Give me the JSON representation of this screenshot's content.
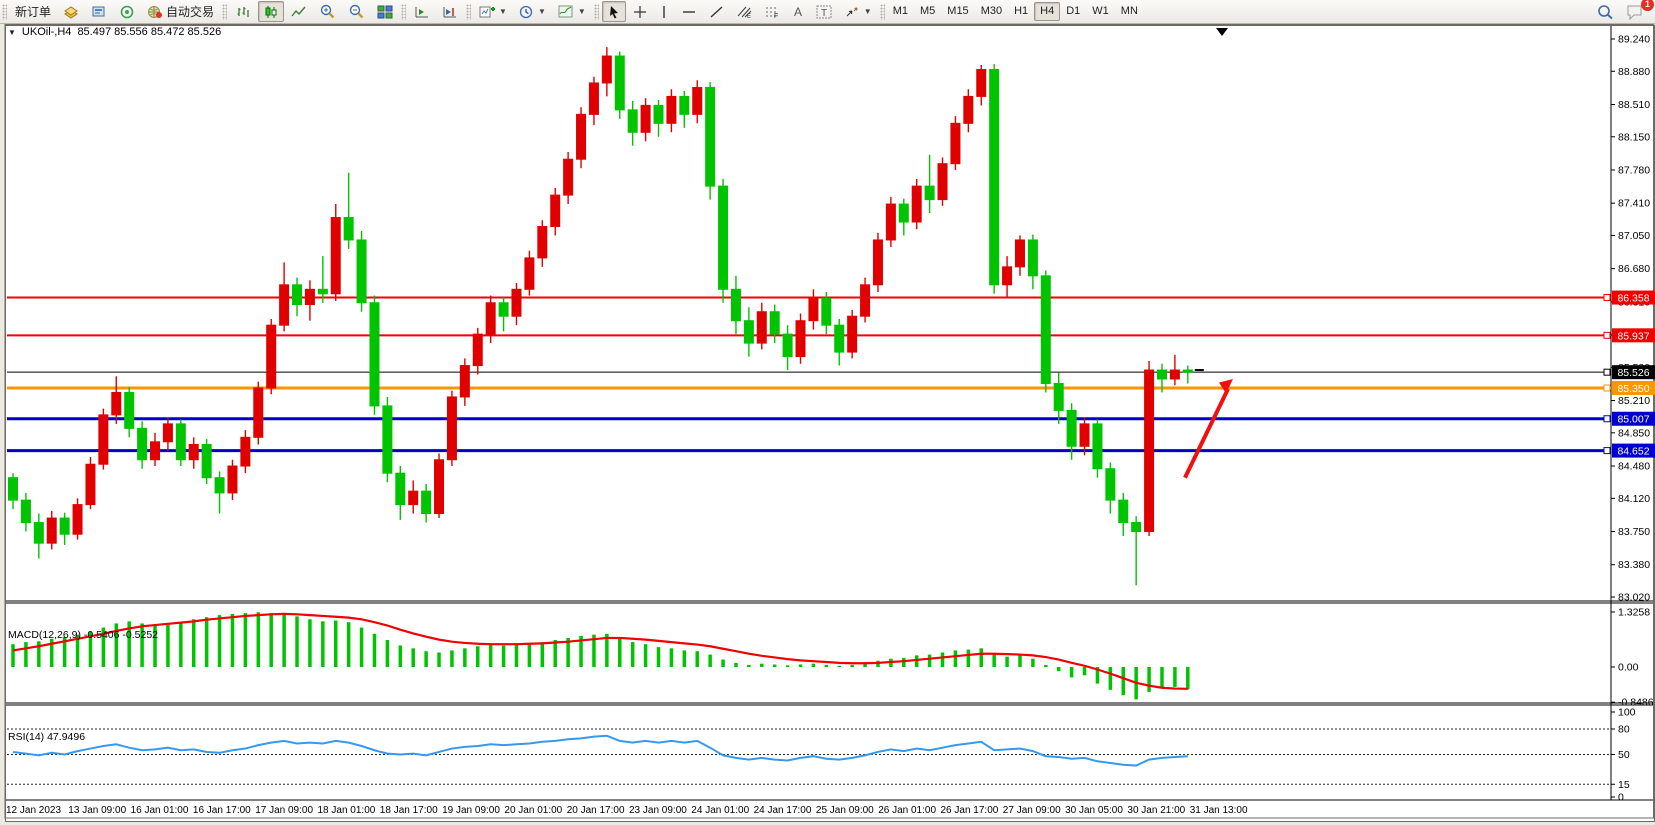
{
  "toolbar": {
    "new_order_label": "新订单",
    "auto_trading_label": "自动交易",
    "timeframes": [
      "M1",
      "M5",
      "M15",
      "M30",
      "H1",
      "H4",
      "D1",
      "W1",
      "MN"
    ],
    "active_timeframe": "H4",
    "notification_count": "1"
  },
  "chart": {
    "title": "UKOil-,H4",
    "ohlc": "85.497 85.556 85.472 85.526"
  },
  "chart_data": {
    "type": "candlestick",
    "symbol": "UKOil-",
    "timeframe": "H4",
    "ohlc_display": {
      "open": "85.497",
      "high": "85.556",
      "low": "85.472",
      "close": "85.526"
    },
    "price_axis": {
      "max": 89.24,
      "min": 83.02,
      "ticks": [
        89.24,
        88.88,
        88.51,
        88.15,
        87.78,
        87.41,
        87.05,
        86.68,
        86.31,
        85.94,
        85.58,
        85.21,
        84.85,
        84.48,
        84.12,
        83.75,
        83.38,
        83.02
      ]
    },
    "hlines": [
      {
        "price": 86.358,
        "label": "86.358",
        "color": "#f00000",
        "width": 2
      },
      {
        "price": 85.937,
        "label": "85.937",
        "color": "#f00000",
        "width": 2
      },
      {
        "price": 85.526,
        "label": "85.526",
        "color": "#000000",
        "width": 1
      },
      {
        "price": 85.35,
        "label": "85.350",
        "color": "#ff9500",
        "width": 3
      },
      {
        "price": 85.007,
        "label": "85.007",
        "color": "#0000cc",
        "width": 3
      },
      {
        "price": 84.652,
        "label": "84.652",
        "color": "#0000cc",
        "width": 3
      }
    ],
    "candles": [
      [
        84.35,
        84.4,
        84.0,
        84.1
      ],
      [
        84.1,
        84.18,
        83.75,
        83.85
      ],
      [
        83.85,
        83.95,
        83.45,
        83.62
      ],
      [
        83.62,
        83.98,
        83.55,
        83.9
      ],
      [
        83.9,
        83.96,
        83.6,
        83.72
      ],
      [
        83.72,
        84.12,
        83.66,
        84.05
      ],
      [
        84.05,
        84.58,
        84.0,
        84.5
      ],
      [
        84.5,
        85.12,
        84.44,
        85.05
      ],
      [
        85.05,
        85.48,
        84.95,
        85.3
      ],
      [
        85.3,
        85.36,
        84.8,
        84.9
      ],
      [
        84.9,
        84.98,
        84.45,
        84.55
      ],
      [
        84.55,
        84.85,
        84.48,
        84.75
      ],
      [
        84.75,
        85.02,
        84.65,
        84.95
      ],
      [
        84.95,
        85.0,
        84.48,
        84.55
      ],
      [
        84.55,
        84.8,
        84.45,
        84.72
      ],
      [
        84.72,
        84.78,
        84.28,
        84.35
      ],
      [
        84.35,
        84.42,
        83.95,
        84.18
      ],
      [
        84.18,
        84.55,
        84.1,
        84.48
      ],
      [
        84.48,
        84.88,
        84.4,
        84.8
      ],
      [
        84.8,
        85.42,
        84.72,
        85.35
      ],
      [
        85.35,
        86.12,
        85.28,
        86.05
      ],
      [
        86.05,
        86.75,
        85.98,
        86.5
      ],
      [
        86.5,
        86.58,
        86.15,
        86.28
      ],
      [
        86.28,
        86.55,
        86.1,
        86.45
      ],
      [
        86.45,
        86.82,
        86.3,
        86.4
      ],
      [
        86.4,
        87.4,
        86.32,
        87.25
      ],
      [
        87.25,
        87.75,
        86.9,
        87.0
      ],
      [
        87.0,
        87.1,
        86.2,
        86.3
      ],
      [
        86.3,
        86.38,
        85.05,
        85.15
      ],
      [
        85.15,
        85.25,
        84.3,
        84.4
      ],
      [
        84.4,
        84.48,
        83.88,
        84.05
      ],
      [
        84.05,
        84.32,
        83.95,
        84.2
      ],
      [
        84.2,
        84.28,
        83.85,
        83.95
      ],
      [
        83.95,
        84.62,
        83.9,
        84.55
      ],
      [
        84.55,
        85.32,
        84.48,
        85.25
      ],
      [
        85.25,
        85.68,
        85.15,
        85.6
      ],
      [
        85.6,
        86.02,
        85.5,
        85.95
      ],
      [
        85.95,
        86.38,
        85.85,
        86.3
      ],
      [
        86.3,
        86.36,
        85.98,
        86.15
      ],
      [
        86.15,
        86.52,
        86.05,
        86.45
      ],
      [
        86.45,
        86.88,
        86.38,
        86.8
      ],
      [
        86.8,
        87.22,
        86.7,
        87.15
      ],
      [
        87.15,
        87.58,
        87.05,
        87.5
      ],
      [
        87.5,
        87.98,
        87.4,
        87.9
      ],
      [
        87.9,
        88.48,
        87.8,
        88.4
      ],
      [
        88.4,
        88.82,
        88.28,
        88.75
      ],
      [
        88.75,
        89.15,
        88.6,
        89.05
      ],
      [
        89.05,
        89.1,
        88.35,
        88.45
      ],
      [
        88.45,
        88.55,
        88.05,
        88.2
      ],
      [
        88.2,
        88.58,
        88.1,
        88.5
      ],
      [
        88.5,
        88.56,
        88.15,
        88.3
      ],
      [
        88.3,
        88.68,
        88.2,
        88.6
      ],
      [
        88.6,
        88.66,
        88.25,
        88.4
      ],
      [
        88.4,
        88.78,
        88.3,
        88.7
      ],
      [
        88.7,
        88.76,
        87.45,
        87.6
      ],
      [
        87.6,
        87.68,
        86.3,
        86.45
      ],
      [
        86.45,
        86.6,
        85.95,
        86.1
      ],
      [
        86.1,
        86.25,
        85.7,
        85.85
      ],
      [
        85.85,
        86.3,
        85.78,
        86.2
      ],
      [
        86.2,
        86.28,
        85.85,
        85.95
      ],
      [
        85.95,
        86.05,
        85.55,
        85.7
      ],
      [
        85.7,
        86.18,
        85.62,
        86.1
      ],
      [
        86.1,
        86.45,
        86.0,
        86.35
      ],
      [
        86.35,
        86.42,
        85.95,
        86.05
      ],
      [
        86.05,
        86.12,
        85.6,
        85.75
      ],
      [
        85.75,
        86.22,
        85.68,
        86.15
      ],
      [
        86.15,
        86.58,
        86.08,
        86.5
      ],
      [
        86.5,
        87.08,
        86.42,
        87.0
      ],
      [
        87.0,
        87.48,
        86.92,
        87.4
      ],
      [
        87.4,
        87.46,
        87.05,
        87.2
      ],
      [
        87.2,
        87.68,
        87.12,
        87.6
      ],
      [
        87.6,
        87.95,
        87.3,
        87.45
      ],
      [
        87.45,
        87.92,
        87.38,
        87.85
      ],
      [
        87.85,
        88.38,
        87.78,
        88.3
      ],
      [
        88.3,
        88.68,
        88.2,
        88.6
      ],
      [
        88.6,
        88.95,
        88.5,
        88.9
      ],
      [
        88.9,
        88.96,
        86.4,
        86.5
      ],
      [
        86.5,
        86.82,
        86.35,
        86.7
      ],
      [
        86.7,
        87.05,
        86.6,
        87.0
      ],
      [
        87.0,
        87.06,
        86.45,
        86.6
      ],
      [
        86.6,
        86.66,
        85.3,
        85.4
      ],
      [
        85.4,
        85.52,
        84.95,
        85.1
      ],
      [
        85.1,
        85.18,
        84.55,
        84.7
      ],
      [
        84.7,
        85.02,
        84.6,
        84.95
      ],
      [
        84.95,
        85.0,
        84.35,
        84.45
      ],
      [
        84.45,
        84.52,
        83.95,
        84.1
      ],
      [
        84.1,
        84.18,
        83.7,
        83.85
      ],
      [
        83.85,
        83.92,
        83.15,
        83.75
      ],
      [
        83.75,
        85.65,
        83.7,
        85.55
      ],
      [
        85.55,
        85.62,
        85.3,
        85.45
      ],
      [
        85.45,
        85.72,
        85.38,
        85.55
      ],
      [
        85.55,
        85.6,
        85.4,
        85.526
      ]
    ],
    "macd": {
      "label": "MACD(12,26,9) -0.5406 -0.5252",
      "params": "12,26,9",
      "main_value": -0.5406,
      "signal_value": -0.5252,
      "axis": [
        "1.3258",
        "0.00",
        "-0.8486"
      ],
      "hist": [
        0.55,
        0.6,
        0.62,
        0.68,
        0.72,
        0.78,
        0.85,
        0.95,
        1.05,
        1.1,
        1.05,
        1.0,
        1.02,
        1.08,
        1.15,
        1.2,
        1.25,
        1.28,
        1.3,
        1.32,
        1.3,
        1.28,
        1.22,
        1.15,
        1.1,
        1.12,
        1.08,
        0.95,
        0.8,
        0.65,
        0.52,
        0.45,
        0.38,
        0.35,
        0.4,
        0.45,
        0.5,
        0.55,
        0.52,
        0.55,
        0.58,
        0.6,
        0.65,
        0.7,
        0.75,
        0.78,
        0.8,
        0.7,
        0.6,
        0.55,
        0.48,
        0.45,
        0.4,
        0.38,
        0.3,
        0.18,
        0.1,
        0.05,
        0.08,
        0.06,
        0.04,
        0.06,
        0.08,
        0.05,
        0.03,
        0.05,
        0.1,
        0.15,
        0.2,
        0.22,
        0.28,
        0.3,
        0.35,
        0.4,
        0.42,
        0.45,
        0.3,
        0.25,
        0.28,
        0.2,
        0.05,
        -0.1,
        -0.25,
        -0.2,
        -0.4,
        -0.55,
        -0.68,
        -0.78,
        -0.6,
        -0.52,
        -0.48,
        -0.5406
      ],
      "signal": [
        0.4,
        0.45,
        0.5,
        0.56,
        0.62,
        0.68,
        0.74,
        0.8,
        0.87,
        0.93,
        0.98,
        1.01,
        1.04,
        1.07,
        1.1,
        1.14,
        1.17,
        1.2,
        1.23,
        1.25,
        1.27,
        1.28,
        1.27,
        1.25,
        1.23,
        1.21,
        1.19,
        1.15,
        1.08,
        1.0,
        0.9,
        0.81,
        0.73,
        0.66,
        0.61,
        0.58,
        0.56,
        0.55,
        0.55,
        0.55,
        0.56,
        0.57,
        0.59,
        0.61,
        0.64,
        0.67,
        0.7,
        0.7,
        0.68,
        0.66,
        0.63,
        0.6,
        0.57,
        0.54,
        0.5,
        0.44,
        0.38,
        0.32,
        0.27,
        0.23,
        0.19,
        0.16,
        0.14,
        0.12,
        0.1,
        0.09,
        0.09,
        0.1,
        0.12,
        0.14,
        0.17,
        0.2,
        0.23,
        0.26,
        0.29,
        0.32,
        0.32,
        0.31,
        0.3,
        0.28,
        0.24,
        0.18,
        0.1,
        0.03,
        -0.06,
        -0.16,
        -0.27,
        -0.38,
        -0.45,
        -0.5,
        -0.52,
        -0.5252
      ]
    },
    "rsi": {
      "label": "RSI(14) 47.9496",
      "period": 14,
      "value": 47.9496,
      "axis": [
        "100",
        "80",
        "50",
        "15",
        "0"
      ],
      "levels": [
        80,
        50,
        15
      ],
      "values": [
        53,
        51,
        49,
        52,
        50,
        54,
        57,
        60,
        62,
        58,
        55,
        56,
        58,
        55,
        56,
        53,
        52,
        55,
        57,
        61,
        64,
        66,
        63,
        64,
        63,
        66,
        64,
        60,
        55,
        51,
        50,
        51,
        49,
        53,
        57,
        59,
        60,
        62,
        61,
        62,
        63,
        65,
        66,
        68,
        69,
        71,
        72,
        66,
        64,
        66,
        64,
        66,
        64,
        66,
        58,
        49,
        46,
        44,
        46,
        44,
        43,
        46,
        48,
        45,
        44,
        46,
        49,
        53,
        56,
        54,
        57,
        55,
        58,
        61,
        63,
        65,
        55,
        56,
        57,
        54,
        48,
        47,
        45,
        46,
        42,
        40,
        38,
        37,
        44,
        46,
        47,
        47.9
      ]
    },
    "x_labels": [
      "12 Jan 2023",
      "13 Jan 09:00",
      "16 Jan 01:00",
      "16 Jan 17:00",
      "17 Jan 09:00",
      "18 Jan 01:00",
      "18 Jan 17:00",
      "19 Jan 09:00",
      "20 Jan 01:00",
      "20 Jan 17:00",
      "23 Jan 09:00",
      "24 Jan 01:00",
      "24 Jan 17:00",
      "25 Jan 09:00",
      "26 Jan 01:00",
      "26 Jan 17:00",
      "27 Jan 09:00",
      "30 Jan 05:00",
      "30 Jan 21:00",
      "31 Jan 13:00"
    ],
    "colors": {
      "bull": "#e00000",
      "bear": "#00c400",
      "macd_signal": "#f00000",
      "macd_hist": "#00c400",
      "rsi_line": "#3699f0",
      "annotation_arrow": "#f01010"
    },
    "annotations": [
      {
        "type": "arrow-up",
        "from_price": 84.35,
        "to_price": 85.45,
        "color": "#f01010"
      }
    ],
    "legend_position": "top-left",
    "grid": false
  }
}
